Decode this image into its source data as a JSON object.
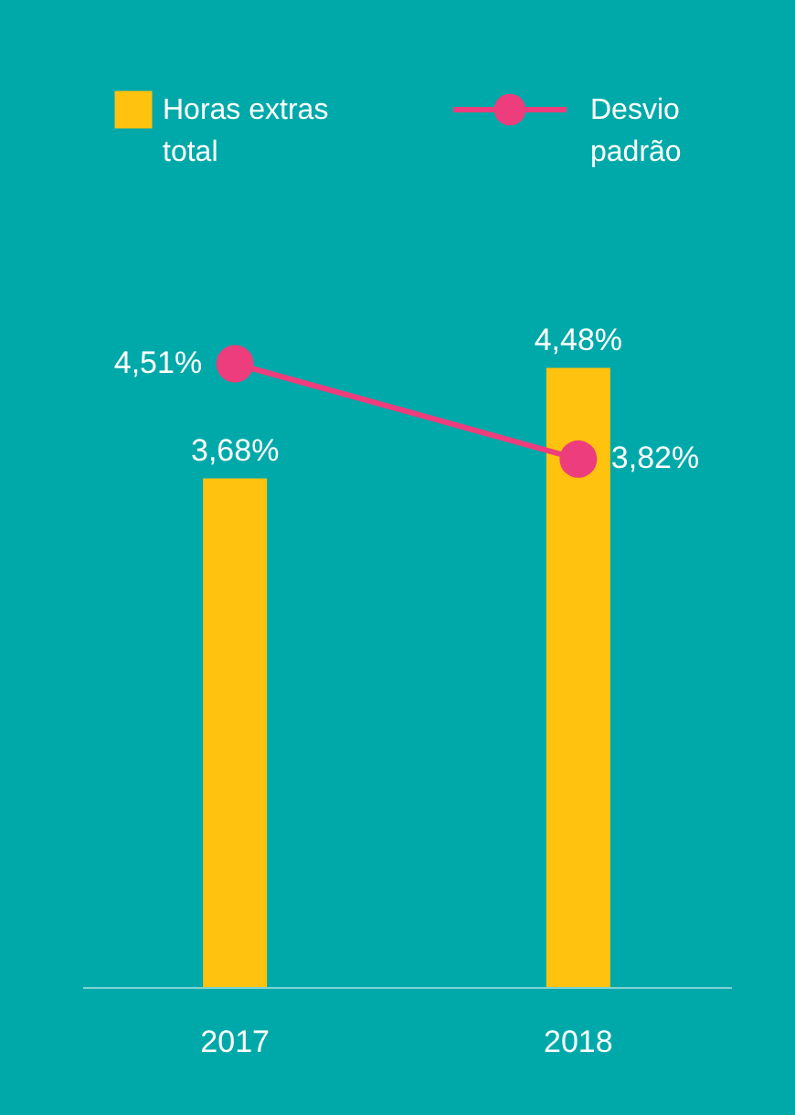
{
  "chart_data": {
    "type": "bar",
    "categories": [
      "2017",
      "2018"
    ],
    "series": [
      {
        "name": "Horas extras total",
        "color": "#ffc20e",
        "values": [
          3.68,
          4.48
        ],
        "value_labels": [
          "3,68%",
          "4,48%"
        ]
      },
      {
        "name": "Desvio padrão",
        "type": "line",
        "color": "#ee3d7c",
        "values": [
          4.51,
          3.82
        ],
        "value_labels": [
          "4,51%",
          "3,82%"
        ]
      }
    ],
    "grid": false,
    "legend": "top",
    "marker": "circle"
  }
}
